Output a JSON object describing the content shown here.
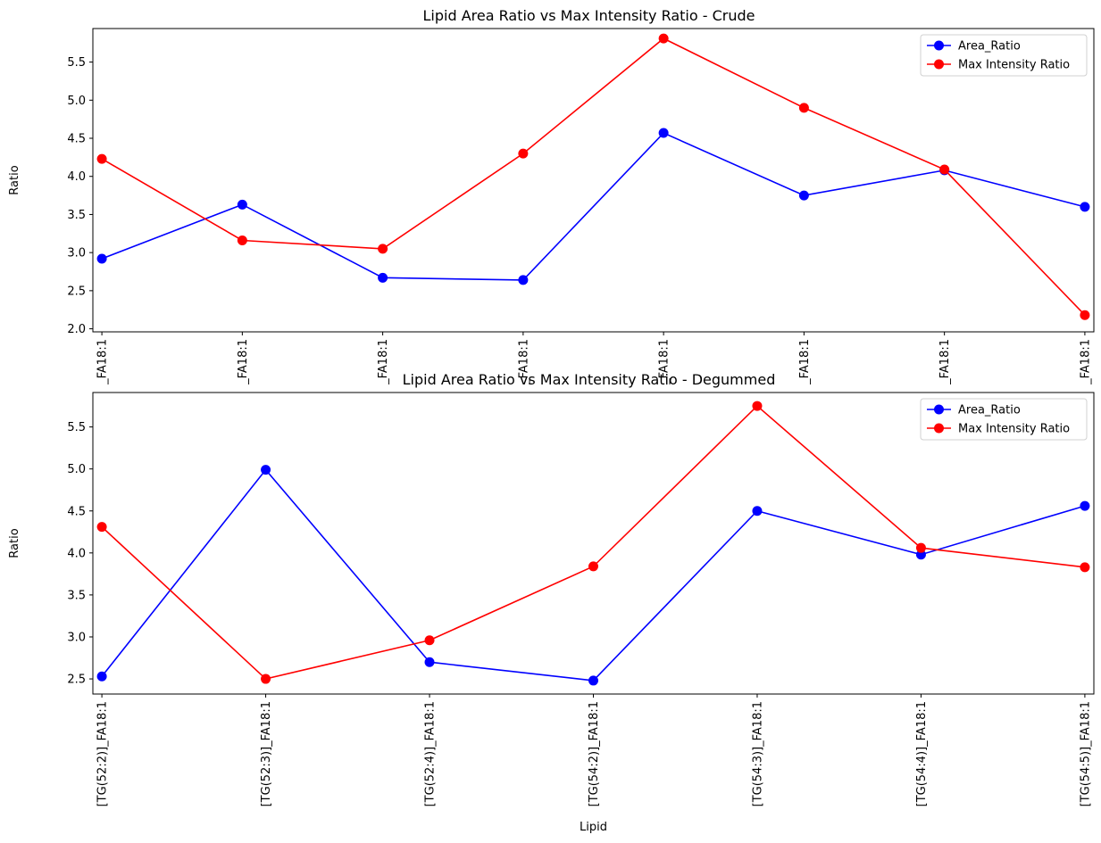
{
  "chart_data": [
    {
      "type": "line",
      "title": "Lipid Area Ratio vs Max Intensity Ratio - Crude",
      "xlabel": "",
      "ylabel": "Ratio",
      "categories": [
        "_FA18:1",
        "_FA18:1",
        "_FA18:1",
        "_FA18:1",
        "_FA18:1",
        "_FA18:1",
        "_FA18:1",
        "_FA18:1"
      ],
      "ylim": [
        1.96,
        5.94
      ],
      "yticks": [
        "2.0",
        "2.5",
        "3.0",
        "3.5",
        "4.0",
        "4.5",
        "5.0",
        "5.5"
      ],
      "grid": false,
      "legend": "top-right",
      "series": [
        {
          "name": "Area_Ratio",
          "color": "#0000ff",
          "values": [
            2.92,
            3.63,
            2.67,
            2.64,
            4.57,
            3.75,
            4.08,
            3.6
          ]
        },
        {
          "name": "Max Intensity Ratio",
          "color": "#ff0000",
          "values": [
            4.23,
            3.16,
            3.05,
            4.3,
            5.81,
            4.9,
            4.09,
            2.18
          ]
        }
      ]
    },
    {
      "type": "line",
      "title": "Lipid Area Ratio vs Max Intensity Ratio - Degummed",
      "xlabel": "Lipid",
      "ylabel": "Ratio",
      "categories": [
        "[TG(52:2)]_FA18:1",
        "[TG(52:3)]_FA18:1",
        "[TG(52:4)]_FA18:1",
        "[TG(54:2)]_FA18:1",
        "[TG(54:3)]_FA18:1",
        "[TG(54:4)]_FA18:1",
        "[TG(54:5)]_FA18:1"
      ],
      "ylim": [
        2.32,
        5.91
      ],
      "yticks": [
        "2.5",
        "3.0",
        "3.5",
        "4.0",
        "4.5",
        "5.0",
        "5.5"
      ],
      "grid": false,
      "legend": "top-right",
      "series": [
        {
          "name": "Area_Ratio",
          "color": "#0000ff",
          "values": [
            2.53,
            4.99,
            2.7,
            2.48,
            4.5,
            3.98,
            4.56
          ]
        },
        {
          "name": "Max Intensity Ratio",
          "color": "#ff0000",
          "values": [
            4.31,
            2.5,
            2.96,
            3.84,
            5.75,
            4.06,
            3.83
          ]
        }
      ]
    }
  ]
}
